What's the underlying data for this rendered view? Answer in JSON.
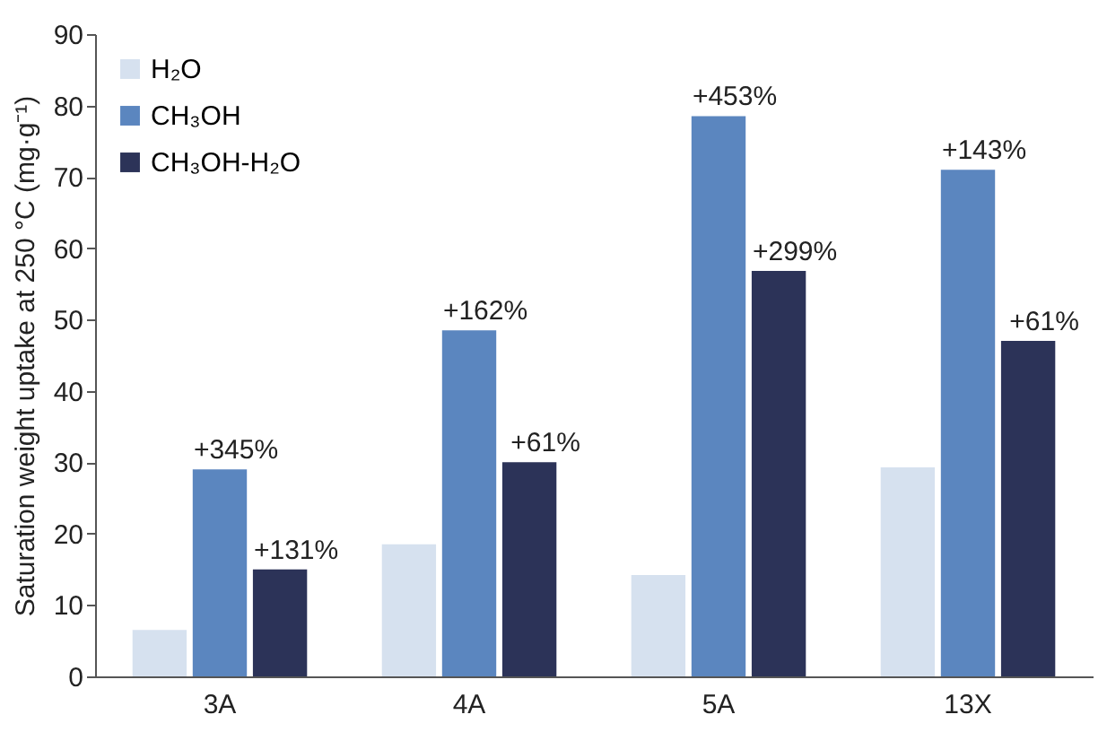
{
  "chart_data": {
    "type": "bar",
    "ylabel": "Saturation weight uptake at 250 °C (mg·g⁻¹)",
    "categories": [
      "3A",
      "4A",
      "5A",
      "13X"
    ],
    "series": [
      {
        "name": "H₂O",
        "color": "#d6e1ef",
        "values": [
          6.5,
          18.5,
          14.2,
          29.3
        ]
      },
      {
        "name": "CH₃OH",
        "color": "#5b86bf",
        "values": [
          29,
          48.5,
          78.5,
          71
        ]
      },
      {
        "name": "CH₃OH-H₂O",
        "color": "#2c3358",
        "values": [
          15,
          30,
          56.8,
          47
        ]
      }
    ],
    "annotations": [
      {
        "text": "+345%",
        "x": "3A",
        "y": 29
      },
      "+131%",
      {
        "text": "+162%",
        "x": "4A",
        "y": 48.5
      },
      "+61%",
      {
        "text": "+453%",
        "x": "5A",
        "y": 78.5
      },
      "+299%",
      {
        "text": "+143%",
        "x": "13X",
        "y": 71
      },
      "+61%"
    ],
    "ylim": [
      0,
      90
    ],
    "yticks": [
      0,
      10,
      20,
      30,
      40,
      50,
      60,
      70,
      80,
      90
    ],
    "legend": "top left"
  }
}
